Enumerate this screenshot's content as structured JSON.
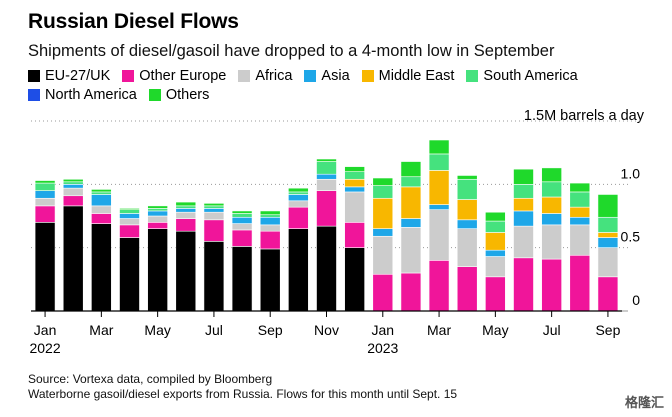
{
  "title": "Russian Diesel Flows",
  "subtitle": "Shipments of diesel/gasoil have dropped to a 4-month low in September",
  "unit_label": "1.5M barrels a day",
  "source": "Source: Vortexa data, compiled by Bloomberg",
  "note": "Waterborne gasoil/diesel exports from Russia. Flows for this month until Sept. 15",
  "watermark": "格隆汇",
  "legend": [
    {
      "name": "EU-27/UK",
      "color": "#000000"
    },
    {
      "name": "Other Europe",
      "color": "#f0159a"
    },
    {
      "name": "Africa",
      "color": "#cccccc"
    },
    {
      "name": "Asia",
      "color": "#1ea7e8"
    },
    {
      "name": "Middle East",
      "color": "#f8b700"
    },
    {
      "name": "South America",
      "color": "#45e27e"
    },
    {
      "name": "North America",
      "color": "#1e4ee6"
    },
    {
      "name": "Others",
      "color": "#1fd92b"
    }
  ],
  "chart_data": {
    "type": "bar",
    "stacked": true,
    "categories": [
      "Jan 2022",
      "Feb 2022",
      "Mar 2022",
      "Apr 2022",
      "May 2022",
      "Jun 2022",
      "Jul 2022",
      "Aug 2022",
      "Sep 2022",
      "Oct 2022",
      "Nov 2022",
      "Dec 2022",
      "Jan 2023",
      "Feb 2023",
      "Mar 2023",
      "Apr 2023",
      "May 2023",
      "Jun 2023",
      "Jul 2023",
      "Aug 2023",
      "Sep 2023"
    ],
    "x_tick_labels": [
      "Jan",
      "Mar",
      "May",
      "Jul",
      "Sep",
      "Nov",
      "Jan",
      "Mar",
      "May",
      "Jul",
      "Sep"
    ],
    "x_tick_indices": [
      0,
      2,
      4,
      6,
      8,
      10,
      12,
      14,
      16,
      18,
      20
    ],
    "x_year_labels": [
      {
        "index": 0,
        "label": "2022"
      },
      {
        "index": 12,
        "label": "2023"
      }
    ],
    "y_ticks": [
      0,
      0.5,
      1.0
    ],
    "y_tick_labels": [
      "0",
      "0.5",
      "1.0"
    ],
    "ylim": [
      0,
      1.5
    ],
    "ylabel": "1.5M barrels a day",
    "series": [
      {
        "name": "EU-27/UK",
        "color": "#000000",
        "values": [
          0.7,
          0.83,
          0.69,
          0.58,
          0.65,
          0.63,
          0.55,
          0.51,
          0.49,
          0.65,
          0.67,
          0.5,
          0,
          0,
          0,
          0,
          0,
          0,
          0,
          0,
          0
        ]
      },
      {
        "name": "Other Europe",
        "color": "#f0159a",
        "values": [
          0.13,
          0.08,
          0.08,
          0.1,
          0.05,
          0.1,
          0.17,
          0.13,
          0.14,
          0.17,
          0.28,
          0.2,
          0.29,
          0.3,
          0.4,
          0.35,
          0.27,
          0.42,
          0.41,
          0.44,
          0.27
        ]
      },
      {
        "name": "Africa",
        "color": "#cccccc",
        "values": [
          0.06,
          0.06,
          0.06,
          0.05,
          0.05,
          0.05,
          0.06,
          0.05,
          0.05,
          0.05,
          0.09,
          0.24,
          0.3,
          0.36,
          0.4,
          0.3,
          0.16,
          0.25,
          0.27,
          0.24,
          0.23
        ]
      },
      {
        "name": "Asia",
        "color": "#1ea7e8",
        "values": [
          0.06,
          0.03,
          0.09,
          0.04,
          0.04,
          0.03,
          0.03,
          0.05,
          0.06,
          0.05,
          0.04,
          0.04,
          0.06,
          0.07,
          0.04,
          0.07,
          0.05,
          0.12,
          0.09,
          0.06,
          0.08
        ]
      },
      {
        "name": "Middle East",
        "color": "#f8b700",
        "values": [
          0,
          0,
          0,
          0,
          0,
          0,
          0,
          0,
          0,
          0,
          0,
          0.06,
          0.24,
          0.25,
          0.27,
          0.16,
          0.14,
          0.1,
          0.13,
          0.08,
          0.04
        ]
      },
      {
        "name": "South America",
        "color": "#45e27e",
        "values": [
          0.06,
          0.02,
          0.02,
          0.03,
          0.02,
          0.02,
          0.02,
          0.03,
          0.02,
          0.02,
          0.1,
          0.06,
          0.1,
          0.08,
          0.13,
          0.16,
          0.09,
          0.11,
          0.12,
          0.12,
          0.12
        ]
      },
      {
        "name": "North America",
        "color": "#1e4ee6",
        "values": [
          0,
          0,
          0,
          0,
          0,
          0,
          0,
          0,
          0,
          0,
          0,
          0,
          0,
          0,
          0,
          0,
          0,
          0,
          0,
          0,
          0
        ]
      },
      {
        "name": "Others",
        "color": "#1fd92b",
        "values": [
          0.02,
          0.02,
          0.02,
          0.01,
          0.02,
          0.03,
          0.02,
          0.02,
          0.03,
          0.03,
          0.02,
          0.04,
          0.06,
          0.12,
          0.11,
          0.03,
          0.07,
          0.12,
          0.11,
          0.07,
          0.18
        ]
      }
    ]
  }
}
